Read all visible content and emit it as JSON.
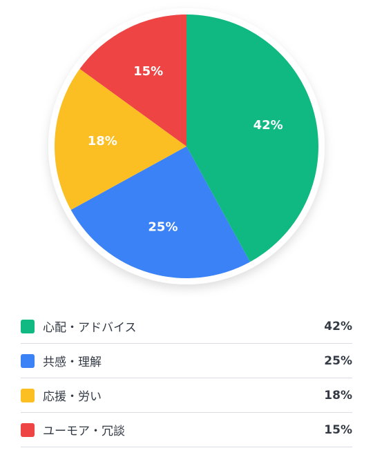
{
  "chart_data": {
    "type": "pie",
    "categories": [
      "心配・アドバイス",
      "共感・理解",
      "応援・労い",
      "ユーモア・冗談"
    ],
    "values": [
      42,
      25,
      18,
      15
    ],
    "unit": "%",
    "colors": [
      "#10b981",
      "#3b82f6",
      "#fbbf24",
      "#ef4444"
    ],
    "slice_labels": [
      "42%",
      "25%",
      "18%",
      "15%"
    ],
    "legend_placement": "bottom"
  },
  "legend": {
    "items": [
      {
        "label": "心配・アドバイス",
        "value": "42%",
        "color": "#10b981"
      },
      {
        "label": "共感・理解",
        "value": "25%",
        "color": "#3b82f6"
      },
      {
        "label": "応援・労い",
        "value": "18%",
        "color": "#fbbf24"
      },
      {
        "label": "ユーモア・冗談",
        "value": "15%",
        "color": "#ef4444"
      }
    ]
  }
}
